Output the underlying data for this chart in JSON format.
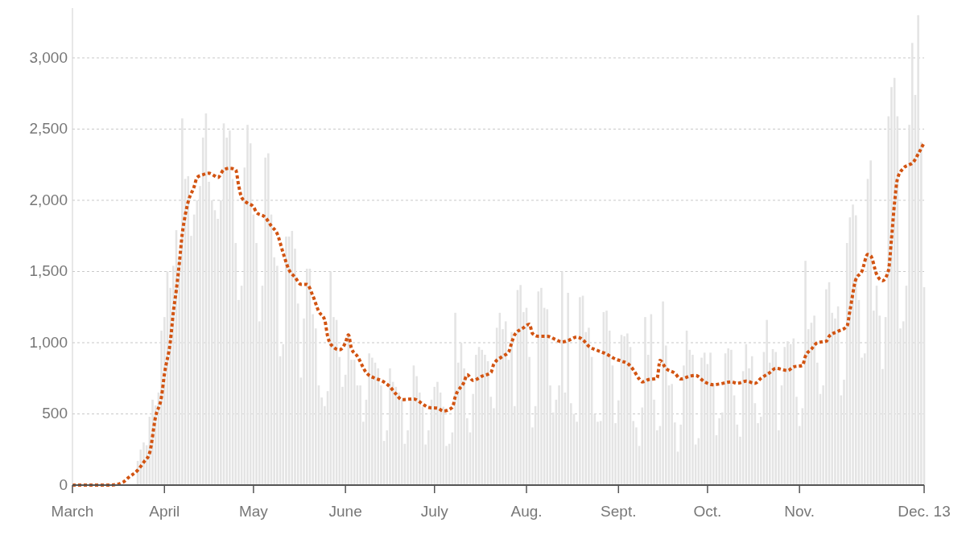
{
  "chart_data": {
    "type": "bar",
    "grid": "y",
    "line_style": "dotted",
    "xlim": [
      "--03-01",
      "--12-13"
    ],
    "xticks": [
      {
        "value": "--03-01",
        "label": "March"
      },
      {
        "value": "--04-01",
        "label": "April"
      },
      {
        "value": "--05-01",
        "label": "May"
      },
      {
        "value": "--06-01",
        "label": "June"
      },
      {
        "value": "--07-01",
        "label": "July"
      },
      {
        "value": "--08-01",
        "label": "Aug."
      },
      {
        "value": "--09-01",
        "label": "Sept."
      },
      {
        "value": "--10-01",
        "label": "Oct."
      },
      {
        "value": "--11-01",
        "label": "Nov."
      },
      {
        "value": "--12-13",
        "label": "Dec. 13"
      }
    ],
    "ylim": [
      0,
      3350
    ],
    "yticks": [
      0,
      500,
      {
        "value": 1000,
        "label": "1,000"
      },
      {
        "value": 1500,
        "label": "1,500"
      },
      {
        "value": 2000,
        "label": "2,000"
      },
      {
        "value": 2500,
        "label": "2,500"
      },
      {
        "value": 3000,
        "label": "3,000"
      }
    ],
    "series": [
      {
        "color": "#e4e4e4",
        "x": [
          "--03-23",
          "--03-24",
          "--03-25",
          "--03-26",
          "--03-27",
          "--03-28",
          "--03-29",
          "--03-30",
          "--03-31",
          "--04-01",
          "--04-02",
          "--04-03",
          "--04-04",
          "--04-05",
          "--04-06",
          "--04-07",
          "--04-08",
          "--04-09",
          "--04-10",
          "--04-11",
          "--04-12",
          "--04-13",
          "--04-14",
          "--04-15",
          "--04-16",
          "--04-17",
          "--04-18",
          "--04-19",
          "--04-20",
          "--04-21",
          "--04-22",
          "--04-23",
          "--04-24",
          "--04-25",
          "--04-26",
          "--04-27",
          "--04-28",
          "--04-29",
          "--04-30",
          "--05-01",
          "--05-02",
          "--05-03",
          "--05-04",
          "--05-05",
          "--05-06",
          "--05-07",
          "--05-08",
          "--05-09",
          "--05-10",
          "--05-11",
          "--05-12",
          "--05-13",
          "--05-14",
          "--05-15",
          "--05-16",
          "--05-17",
          "--05-18",
          "--05-19",
          "--05-20",
          "--05-21",
          "--05-22",
          "--05-23",
          "--05-24",
          "--05-25",
          "--05-26",
          "--05-27",
          "--05-28",
          "--05-29",
          "--05-30",
          "--05-31",
          "--06-01",
          "--06-02",
          "--06-03",
          "--06-04",
          "--06-05",
          "--06-06",
          "--06-07",
          "--06-08",
          "--06-09",
          "--06-10",
          "--06-11",
          "--06-12",
          "--06-13",
          "--06-14",
          "--06-15",
          "--06-16",
          "--06-17",
          "--06-18",
          "--06-19",
          "--06-20",
          "--06-21",
          "--06-22",
          "--06-23",
          "--06-24",
          "--06-25",
          "--06-26",
          "--06-27",
          "--06-28",
          "--06-29",
          "--06-30",
          "--07-01",
          "--07-02",
          "--07-03",
          "--07-04",
          "--07-05",
          "--07-06",
          "--07-07",
          "--07-08",
          "--07-09",
          "--07-10",
          "--07-11",
          "--07-12",
          "--07-13",
          "--07-14",
          "--07-15",
          "--07-16",
          "--07-17",
          "--07-18",
          "--07-19",
          "--07-20",
          "--07-21",
          "--07-22",
          "--07-23",
          "--07-24",
          "--07-25",
          "--07-26",
          "--07-27",
          "--07-28",
          "--07-29",
          "--07-30",
          "--07-31",
          "--08-01",
          "--08-02",
          "--08-03",
          "--08-04",
          "--08-05",
          "--08-06",
          "--08-07",
          "--08-08",
          "--08-09",
          "--08-10",
          "--08-11",
          "--08-12",
          "--08-13",
          "--08-14",
          "--08-15",
          "--08-16",
          "--08-17",
          "--08-18",
          "--08-19",
          "--08-20",
          "--08-21",
          "--08-22",
          "--08-23",
          "--08-24",
          "--08-25",
          "--08-26",
          "--08-27",
          "--08-28",
          "--08-29",
          "--08-30",
          "--08-31",
          "--09-01",
          "--09-02",
          "--09-03",
          "--09-04",
          "--09-05",
          "--09-06",
          "--09-07",
          "--09-08",
          "--09-09",
          "--09-10",
          "--09-11",
          "--09-12",
          "--09-13",
          "--09-14",
          "--09-15",
          "--09-16",
          "--09-17",
          "--09-18",
          "--09-19",
          "--09-20",
          "--09-21",
          "--09-22",
          "--09-23",
          "--09-24",
          "--09-25",
          "--09-26",
          "--09-27",
          "--09-28",
          "--09-29",
          "--09-30",
          "--10-01",
          "--10-02",
          "--10-03",
          "--10-04",
          "--10-05",
          "--10-06",
          "--10-07",
          "--10-08",
          "--10-09",
          "--10-10",
          "--10-11",
          "--10-12",
          "--10-13",
          "--10-14",
          "--10-15",
          "--10-16",
          "--10-17",
          "--10-18",
          "--10-19",
          "--10-20",
          "--10-21",
          "--10-22",
          "--10-23",
          "--10-24",
          "--10-25",
          "--10-26",
          "--10-27",
          "--10-28",
          "--10-29",
          "--10-30",
          "--10-31",
          "--11-01",
          "--11-02",
          "--11-03",
          "--11-04",
          "--11-05",
          "--11-06",
          "--11-07",
          "--11-08",
          "--11-09",
          "--11-10",
          "--11-11",
          "--11-12",
          "--11-13",
          "--11-14",
          "--11-15",
          "--11-16",
          "--11-17",
          "--11-18",
          "--11-19",
          "--11-20",
          "--11-21",
          "--11-22",
          "--11-23",
          "--11-24",
          "--11-25",
          "--11-26",
          "--11-27",
          "--11-28",
          "--11-29",
          "--11-30",
          "--12-01",
          "--12-02",
          "--12-03",
          "--12-04",
          "--12-05",
          "--12-06",
          "--12-07",
          "--12-08",
          "--12-09",
          "--12-10",
          "--12-11",
          "--12-12",
          "--12-13"
        ],
        "values": [
          170,
          250,
          300,
          280,
          480,
          600,
          560,
          650,
          1085,
          1180,
          1500,
          1385,
          1540,
          1790,
          1600,
          2575,
          2150,
          2170,
          1750,
          1900,
          2000,
          2100,
          2440,
          2610,
          2130,
          2000,
          1930,
          1870,
          2000,
          2540,
          2440,
          2490,
          2150,
          1700,
          1300,
          1400,
          2230,
          2530,
          2400,
          1900,
          1700,
          1150,
          1400,
          2300,
          2330,
          1900,
          1600,
          1540,
          905,
          990,
          1745,
          1745,
          1785,
          1660,
          1275,
          755,
          1170,
          1520,
          1520,
          1200,
          1100,
          700,
          615,
          555,
          660,
          1500,
          1180,
          1160,
          900,
          690,
          775,
          1045,
          880,
          880,
          700,
          700,
          445,
          600,
          925,
          895,
          860,
          820,
          700,
          310,
          385,
          820,
          725,
          690,
          650,
          600,
          290,
          385,
          600,
          840,
          765,
          650,
          550,
          285,
          385,
          600,
          690,
          725,
          650,
          550,
          275,
          290,
          370,
          1210,
          860,
          1000,
          820,
          470,
          370,
          640,
          915,
          970,
          950,
          915,
          870,
          620,
          540,
          1105,
          1210,
          1095,
          1150,
          880,
          1075,
          555,
          1370,
          1405,
          1215,
          1245,
          900,
          405,
          555,
          1360,
          1385,
          1245,
          1235,
          700,
          510,
          600,
          700,
          1500,
          650,
          1350,
          575,
          500,
          445,
          1320,
          1330,
          1075,
          1105,
          900,
          500,
          445,
          450,
          1215,
          1225,
          1085,
          840,
          435,
          595,
          1055,
          1045,
          1065,
          970,
          450,
          405,
          275,
          545,
          1180,
          915,
          1200,
          600,
          385,
          415,
          1290,
          980,
          700,
          710,
          440,
          235,
          425,
          840,
          1085,
          950,
          915,
          285,
          330,
          895,
          930,
          850,
          930,
          710,
          350,
          470,
          510,
          925,
          960,
          950,
          630,
          425,
          340,
          800,
          990,
          820,
          905,
          575,
          435,
          480,
          935,
          1160,
          860,
          955,
          935,
          385,
          700,
          970,
          1010,
          990,
          1030,
          620,
          415,
          540,
          1575,
          1095,
          1140,
          1190,
          860,
          640,
          700,
          1375,
          1425,
          1210,
          1170,
          1255,
          630,
          740,
          1700,
          1880,
          1970,
          1895,
          1300,
          895,
          925,
          2150,
          2280,
          1225,
          1400,
          1190,
          815,
          1180,
          2590,
          2795,
          2860,
          2590,
          1100,
          1150,
          1400,
          2530,
          3105,
          2740,
          3300,
          2410,
          1390
        ]
      },
      {
        "type": "line",
        "color": "#d25412",
        "x": [
          "--03-01",
          "--03-14",
          "--03-18",
          "--03-20",
          "--03-23",
          "--03-25",
          "--03-27",
          "--03-29",
          "--03-31",
          "--04-01",
          "--04-03",
          "--04-04",
          "--04-05",
          "--04-06",
          "--04-07",
          "--04-08",
          "--04-09",
          "--04-11",
          "--04-12",
          "--04-14",
          "--04-16",
          "--04-18",
          "--04-19",
          "--04-21",
          "--04-23",
          "--04-25",
          "--04-26",
          "--04-27",
          "--04-29",
          "--05-01",
          "--05-02",
          "--05-05",
          "--05-07",
          "--05-09",
          "--05-11",
          "--05-13",
          "--05-15",
          "--05-17",
          "--05-19",
          "--05-21",
          "--05-23",
          "--05-25",
          "--05-26",
          "--05-27",
          "--05-30",
          "--06-01",
          "--06-02",
          "--06-03",
          "--06-05",
          "--06-08",
          "--06-11",
          "--06-13",
          "--06-16",
          "--06-18",
          "--06-20",
          "--06-24",
          "--06-27",
          "--06-29",
          "--07-02",
          "--07-04",
          "--07-07",
          "--07-08",
          "--07-11",
          "--07-12",
          "--07-14",
          "--07-17",
          "--07-20",
          "--07-21",
          "--07-24",
          "--07-26",
          "--07-27",
          "--07-28",
          "--07-31",
          "--08-02",
          "--08-03",
          "--08-05",
          "--08-08",
          "--08-11",
          "--08-13",
          "--08-15",
          "--08-18",
          "--08-20",
          "--08-22",
          "--08-25",
          "--08-28",
          "--08-30",
          "--09-02",
          "--09-04",
          "--09-06",
          "--09-08",
          "--09-09",
          "--09-11",
          "--09-14",
          "--09-15",
          "--09-17",
          "--09-20",
          "--09-22",
          "--09-25",
          "--09-27",
          "--09-30",
          "--10-03",
          "--10-05",
          "--10-09",
          "--10-11",
          "--10-14",
          "--10-17",
          "--10-19",
          "--10-22",
          "--10-24",
          "--10-28",
          "--10-30",
          "--11-02",
          "--11-03",
          "--11-05",
          "--11-07",
          "--11-10",
          "--11-11",
          "--11-14",
          "--11-17",
          "--11-18",
          "--11-20",
          "--11-22",
          "--11-24",
          "--11-25",
          "--11-27",
          "--11-29",
          "--12-01",
          "--12-02",
          "--12-03",
          "--12-04",
          "--12-06",
          "--12-08",
          "--12-09",
          "--12-11",
          "--12-13"
        ],
        "values": [
          0,
          0,
          20,
          55,
          105,
          160,
          225,
          480,
          620,
          780,
          1010,
          1215,
          1370,
          1555,
          1765,
          1895,
          1990,
          2095,
          2160,
          2180,
          2190,
          2170,
          2160,
          2215,
          2225,
          2215,
          2105,
          2020,
          1980,
          1955,
          1915,
          1880,
          1820,
          1765,
          1630,
          1510,
          1460,
          1410,
          1410,
          1330,
          1220,
          1160,
          1045,
          990,
          950,
          1000,
          1055,
          960,
          905,
          790,
          750,
          735,
          690,
          640,
          600,
          605,
          570,
          545,
          540,
          520,
          545,
          620,
          725,
          775,
          735,
          765,
          790,
          850,
          905,
          935,
          1000,
          1055,
          1105,
          1130,
          1065,
          1045,
          1045,
          1020,
          1005,
          1015,
          1040,
          1020,
          975,
          945,
          920,
          895,
          870,
          855,
          810,
          745,
          725,
          740,
          750,
          875,
          820,
          785,
          745,
          765,
          770,
          725,
          705,
          710,
          725,
          715,
          730,
          715,
          750,
          790,
          820,
          805,
          830,
          840,
          905,
          955,
          1000,
          1010,
          1045,
          1080,
          1115,
          1225,
          1445,
          1500,
          1620,
          1610,
          1480,
          1435,
          1510,
          1730,
          1975,
          2150,
          2225,
          2250,
          2260,
          2325,
          2405
        ]
      }
    ]
  }
}
